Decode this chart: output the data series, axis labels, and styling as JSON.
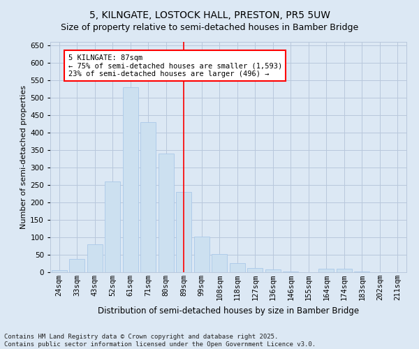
{
  "title": "5, KILNGATE, LOSTOCK HALL, PRESTON, PR5 5UW",
  "subtitle": "Size of property relative to semi-detached houses in Bamber Bridge",
  "xlabel": "Distribution of semi-detached houses by size in Bamber Bridge",
  "ylabel": "Number of semi-detached properties",
  "categories": [
    "24sqm",
    "33sqm",
    "43sqm",
    "52sqm",
    "61sqm",
    "71sqm",
    "80sqm",
    "89sqm",
    "99sqm",
    "108sqm",
    "118sqm",
    "127sqm",
    "136sqm",
    "146sqm",
    "155sqm",
    "164sqm",
    "174sqm",
    "183sqm",
    "202sqm",
    "211sqm"
  ],
  "values": [
    6,
    38,
    80,
    260,
    530,
    430,
    340,
    230,
    103,
    52,
    27,
    13,
    8,
    3,
    0,
    10,
    10,
    2,
    1,
    1
  ],
  "bar_color": "#cce0f0",
  "bar_edge_color": "#aac8e8",
  "grid_color": "#b8c8dc",
  "background_color": "#dce8f4",
  "marker_x": "89sqm",
  "annotation_title": "5 KILNGATE: 87sqm",
  "annotation_line1": "← 75% of semi-detached houses are smaller (1,593)",
  "annotation_line2": "23% of semi-detached houses are larger (496) →",
  "footnote1": "Contains HM Land Registry data © Crown copyright and database right 2025.",
  "footnote2": "Contains public sector information licensed under the Open Government Licence v3.0.",
  "ylim": [
    0,
    660
  ],
  "yticks": [
    0,
    50,
    100,
    150,
    200,
    250,
    300,
    350,
    400,
    450,
    500,
    550,
    600,
    650
  ],
  "title_fontsize": 10,
  "subtitle_fontsize": 9,
  "ylabel_fontsize": 8,
  "xlabel_fontsize": 8.5,
  "tick_fontsize": 7.5,
  "footnote_fontsize": 6.5,
  "annotation_fontsize": 7.5
}
